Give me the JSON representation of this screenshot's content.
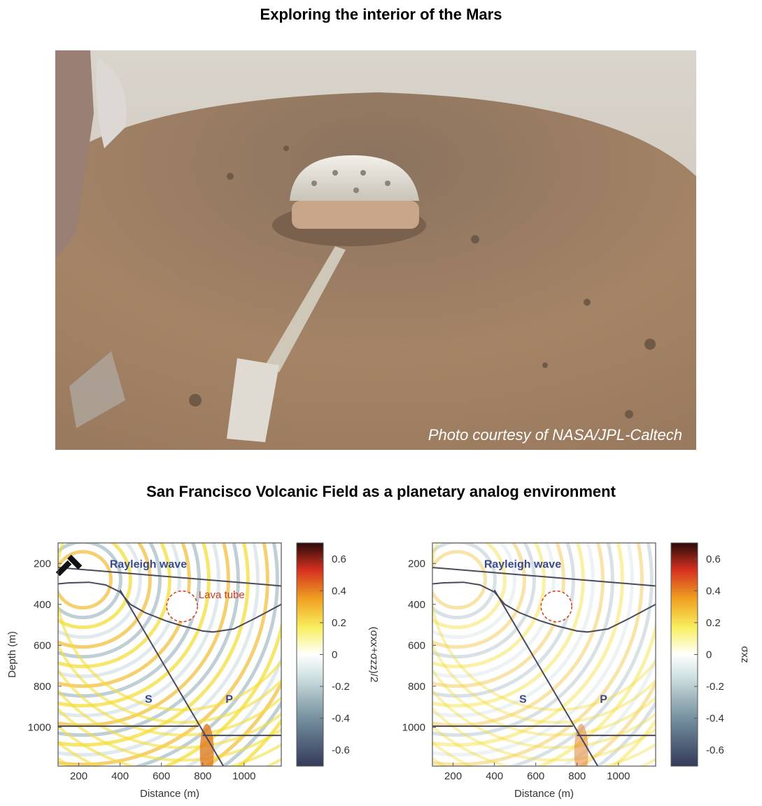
{
  "titles": {
    "top": "Exploring the interior of the Mars",
    "middle": "San Francisco Volcanic Field as a planetary analog environment"
  },
  "photo": {
    "caption": "Photo courtesy of NASA/JPL-Caltech"
  },
  "panels": [
    {
      "xlabel": "Distance (m)",
      "ylabel": "Depth (m)",
      "xticks": [
        "200",
        "400",
        "600",
        "800",
        "1000"
      ],
      "yticks": [
        "200",
        "400",
        "600",
        "800",
        "1000"
      ],
      "xlim": [
        100,
        1180
      ],
      "ylim": [
        100,
        1190
      ],
      "labels": {
        "rayleigh": "Rayleigh wave",
        "lava": "Lava tube",
        "s": "S",
        "p": "P"
      },
      "colorbar": {
        "label": "(σxx+σzz)/2",
        "ticks": [
          "0.6",
          "0.4",
          "0.2",
          "0",
          "-0.2",
          "-0.4",
          "-0.6"
        ],
        "range": [
          -0.7,
          0.7
        ]
      }
    },
    {
      "xlabel": "Distance (m)",
      "ylabel": "",
      "xticks": [
        "200",
        "400",
        "600",
        "800",
        "1000"
      ],
      "yticks": [
        "200",
        "400",
        "600",
        "800",
        "1000"
      ],
      "xlim": [
        100,
        1180
      ],
      "ylim": [
        100,
        1190
      ],
      "labels": {
        "rayleigh": "Rayleigh wave",
        "lava": "",
        "s": "S",
        "p": "P"
      },
      "colorbar": {
        "label": "σxz",
        "ticks": [
          "0.6",
          "0.4",
          "0.2",
          "0",
          "-0.2",
          "-0.4",
          "-0.6"
        ],
        "range": [
          -0.7,
          0.7
        ]
      }
    }
  ],
  "colors": {
    "rayleigh_label": "#3a4a8a",
    "lava_circle": "#d23a1f",
    "interface_line": "#4a4a5a"
  }
}
